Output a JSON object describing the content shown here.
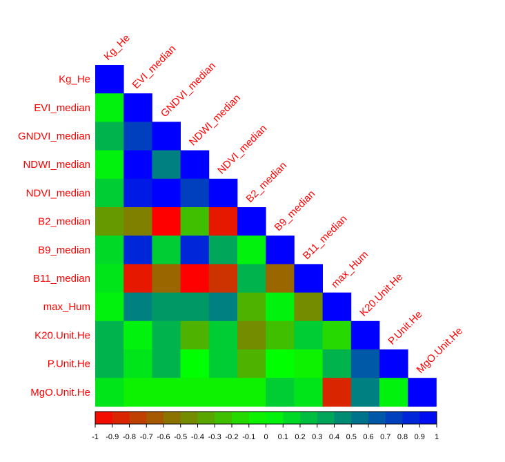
{
  "chart_data": {
    "type": "heatmap",
    "variables": [
      "Kg_He",
      "EVI_median",
      "GNDVI_median",
      "NDWI_median",
      "NDVI_median",
      "B2_median",
      "B9_median",
      "B11_median",
      "max_Hum",
      "K20.Unit.He",
      "P.Unit.He",
      "MgO.Unit.He"
    ],
    "matrix": [
      [
        1
      ],
      [
        0.05,
        1
      ],
      [
        0.3,
        0.75,
        1
      ],
      [
        0.05,
        1,
        0.5,
        1
      ],
      [
        0.2,
        0.9,
        1,
        0.75,
        1
      ],
      [
        -0.4,
        -0.5,
        -1,
        -0.25,
        -0.9,
        1
      ],
      [
        0.15,
        0.85,
        0.2,
        0.85,
        0.35,
        0.05,
        1
      ],
      [
        0.1,
        -0.9,
        -0.6,
        -1,
        -0.8,
        0.3,
        -0.6,
        1
      ],
      [
        0.05,
        0.5,
        0.4,
        0.4,
        0.5,
        -0.3,
        0.05,
        -0.45,
        1
      ],
      [
        0.3,
        0.05,
        0.3,
        -0.3,
        0.2,
        -0.45,
        -0.25,
        0.2,
        -0.15,
        1
      ],
      [
        0.3,
        0.1,
        0.3,
        0,
        0.2,
        -0.3,
        0,
        -0.05,
        0.3,
        0.65,
        1
      ],
      [
        0.1,
        -0.05,
        -0.05,
        -0.05,
        -0.05,
        -0.05,
        0.2,
        0.1,
        -0.85,
        0.5,
        0.05,
        1
      ]
    ],
    "scale_range": [
      -1,
      1
    ],
    "color_low": "#ff0000",
    "color_mid": "#00ff00",
    "color_high": "#0000ff",
    "colorbar_ticks": [
      "-1",
      "-0.9",
      "-0.8",
      "-0.7",
      "-0.6",
      "-0.5",
      "-0.4",
      "-0.3",
      "-0.2",
      "-0.1",
      "0",
      "0.1",
      "0.2",
      "0.3",
      "0.4",
      "0.5",
      "0.6",
      "0.7",
      "0.8",
      "0.9",
      "1"
    ],
    "colorbar_placement": "bottom",
    "label_color": "#ff0000"
  }
}
